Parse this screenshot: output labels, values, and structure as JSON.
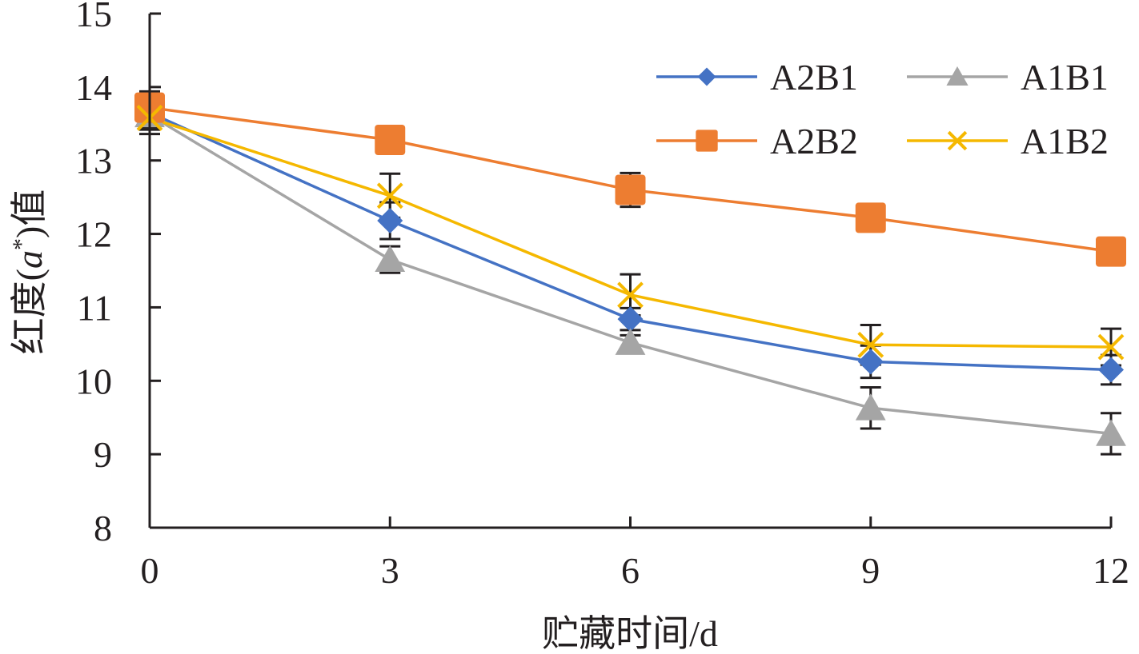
{
  "chart_data": {
    "type": "line",
    "x": [
      0,
      3,
      6,
      9,
      12
    ],
    "xlabel": "贮藏时间/d",
    "ylabel": "红度(a*)值",
    "ylabel_parts": {
      "prefix": "红度(",
      "symbol": "a",
      "sup": "*",
      "suffix": ")值"
    },
    "xlim": [
      0,
      12
    ],
    "ylim": [
      8,
      15
    ],
    "x_ticks": [
      "0",
      "3",
      "6",
      "9",
      "12"
    ],
    "y_ticks": [
      "8",
      "9",
      "10",
      "11",
      "12",
      "13",
      "14",
      "15"
    ],
    "grid": false,
    "legend_position": "top-right",
    "series": [
      {
        "name": "A2B1",
        "marker": "diamond",
        "color": "#4472c4",
        "values": [
          13.65,
          12.18,
          10.84,
          10.26,
          10.15
        ],
        "errors": [
          0.2,
          0.25,
          0.15,
          0.22,
          0.2
        ]
      },
      {
        "name": "A1B1",
        "marker": "triangle",
        "color": "#a5a5a5",
        "values": [
          13.62,
          11.65,
          10.52,
          9.63,
          9.28
        ],
        "errors": [
          0.2,
          0.18,
          0.1,
          0.28,
          0.28
        ]
      },
      {
        "name": "A2B2",
        "marker": "square",
        "color": "#ed7d31",
        "values": [
          13.72,
          13.28,
          12.6,
          12.22,
          11.76
        ],
        "errors": [
          0.22,
          0.12,
          0.23,
          0.1,
          0.13
        ]
      },
      {
        "name": "A1B2",
        "marker": "x",
        "color": "#f5b800",
        "values": [
          13.58,
          12.52,
          11.17,
          10.49,
          10.46
        ],
        "errors": [
          0.22,
          0.3,
          0.28,
          0.27,
          0.25
        ]
      }
    ]
  }
}
